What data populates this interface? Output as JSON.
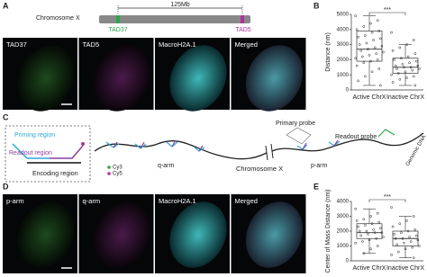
{
  "panel_labels": [
    "A",
    "B",
    "C",
    "D",
    "E"
  ],
  "panel_a": {
    "chromosome": "Chromosome X",
    "length": "125Mb",
    "tad_left": "TAD37",
    "tad_right": "TAD5",
    "images": [
      "TAD37",
      "TAD5",
      "MacroH2A.1",
      "Merged"
    ]
  },
  "panel_c": {
    "inset": {
      "priming": "Priming region",
      "readout": "Readout region",
      "encoding": "Encoding region",
      "cy3": "Cy3",
      "cy5": "Cy5"
    },
    "q_arm": "q-arm",
    "chromosome": "Chromosome X",
    "p_arm": "p-arm",
    "primary_probe": "Primary probe",
    "readout_probe": "Readout probe",
    "genomic_dna": "Genomic DNA"
  },
  "panel_d": {
    "images": [
      "p-arm",
      "q-arm",
      "MacroH2A.1",
      "Merged"
    ]
  },
  "chart_data": [
    {
      "type": "box",
      "ylabel": "Distance (nm)",
      "categories": [
        "Active ChrX",
        "Inactive ChrX"
      ],
      "significance": "***",
      "ylim": [
        0,
        5000
      ],
      "yticks": [
        0,
        1000,
        2000,
        3000,
        4000,
        5000
      ],
      "boxes": [
        {
          "min": 300,
          "q1": 1900,
          "median": 2700,
          "q3": 3900,
          "max": 4900
        },
        {
          "min": 300,
          "q1": 1100,
          "median": 1500,
          "q3": 2100,
          "max": 3000
        }
      ],
      "points": [
        [
          4900,
          4600,
          4400,
          4200,
          4000,
          3900,
          3800,
          3600,
          3500,
          3400,
          3300,
          3100,
          3000,
          2900,
          2800,
          2700,
          2600,
          2500,
          2400,
          2300,
          2200,
          2100,
          2000,
          1900,
          1800,
          1600,
          1400,
          1200,
          900,
          600,
          300
        ],
        [
          3800,
          3300,
          3000,
          2800,
          2600,
          2400,
          2200,
          2100,
          2000,
          1900,
          1800,
          1700,
          1600,
          1600,
          1500,
          1500,
          1400,
          1400,
          1300,
          1200,
          1100,
          1000,
          900,
          800,
          700,
          500,
          300
        ]
      ]
    },
    {
      "type": "box",
      "ylabel": "Center of Mass Distance (nm)",
      "categories": [
        "Active ChrX",
        "Inactive ChrX"
      ],
      "significance": "***",
      "ylim": [
        0,
        4000
      ],
      "yticks": [
        0,
        1000,
        2000,
        3000,
        4000
      ],
      "boxes": [
        {
          "min": 500,
          "q1": 1500,
          "median": 1900,
          "q3": 2500,
          "max": 3500
        },
        {
          "min": 200,
          "q1": 1000,
          "median": 1500,
          "q3": 2000,
          "max": 3000
        }
      ],
      "points": [
        [
          3500,
          3200,
          3000,
          2800,
          2700,
          2600,
          2500,
          2400,
          2300,
          2200,
          2100,
          2000,
          2000,
          1900,
          1900,
          1800,
          1700,
          1600,
          1500,
          1400,
          1300,
          1200,
          1000,
          800,
          500
        ],
        [
          3600,
          3000,
          2700,
          2500,
          2300,
          2100,
          2000,
          1900,
          1800,
          1700,
          1600,
          1500,
          1500,
          1400,
          1300,
          1200,
          1100,
          1000,
          900,
          800,
          600,
          400,
          200
        ]
      ]
    }
  ]
}
